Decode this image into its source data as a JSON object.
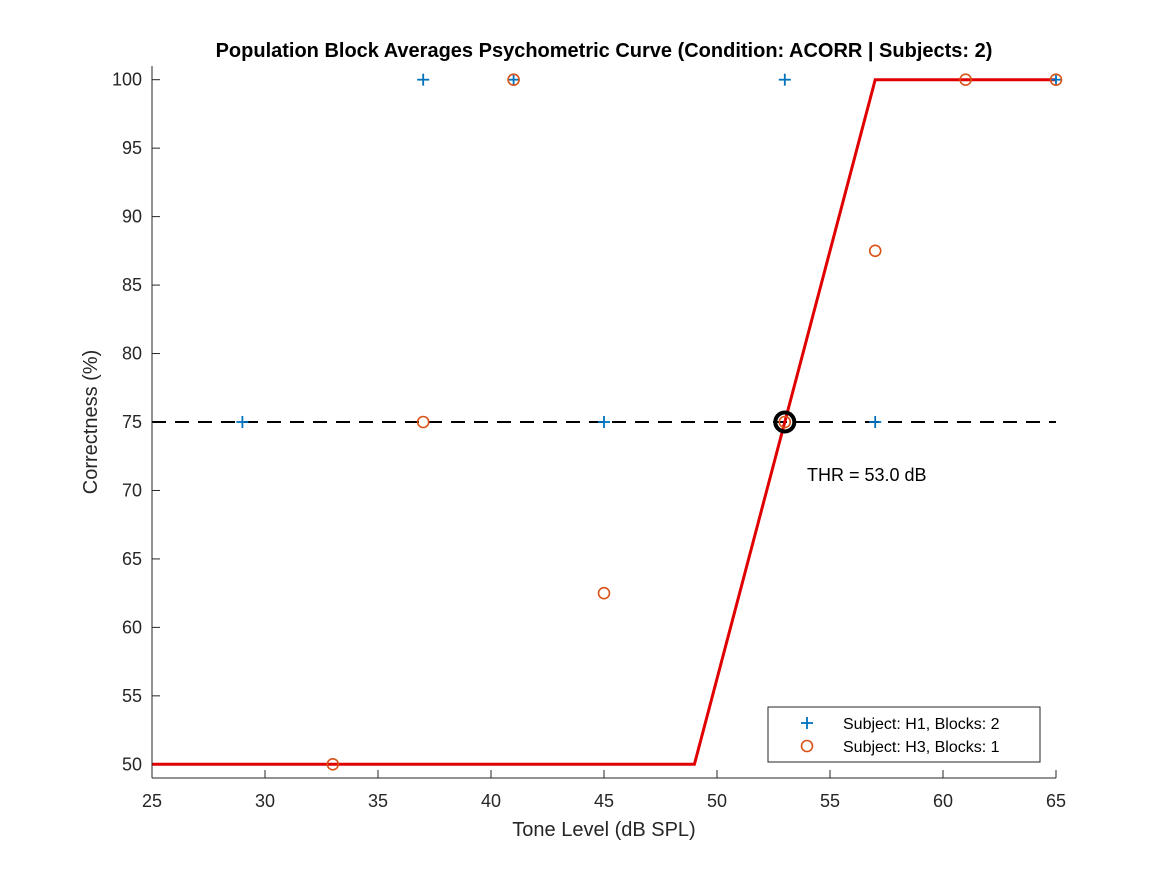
{
  "chart_data": {
    "type": "scatter",
    "title": "Population Block Averages Psychometric Curve (Condition: ACORR | Subjects: 2)",
    "xlabel": "Tone Level (dB SPL)",
    "ylabel": "Correctness (%)",
    "xlim": [
      25,
      65
    ],
    "ylim": [
      49,
      101
    ],
    "xticks": [
      25,
      30,
      35,
      40,
      45,
      50,
      55,
      60,
      65
    ],
    "yticks": [
      50,
      55,
      60,
      65,
      70,
      75,
      80,
      85,
      90,
      95,
      100
    ],
    "grid": false,
    "legend_position": "bottom-right",
    "series": [
      {
        "name": "Subject: H1, Blocks: 2",
        "marker": "plus",
        "color": "#0072BD",
        "points": [
          [
            29,
            75
          ],
          [
            37,
            100
          ],
          [
            41,
            100
          ],
          [
            45,
            75
          ],
          [
            53,
            100
          ],
          [
            57,
            75
          ],
          [
            65,
            100
          ]
        ]
      },
      {
        "name": "Subject: H3, Blocks: 1",
        "marker": "circle",
        "color": "#D95319",
        "points": [
          [
            33,
            50
          ],
          [
            37,
            75
          ],
          [
            41,
            100
          ],
          [
            45,
            62.5
          ],
          [
            53,
            75
          ],
          [
            57,
            87.5
          ],
          [
            61,
            100
          ],
          [
            65,
            100
          ]
        ]
      }
    ],
    "fit_curve": {
      "color": "#E00000",
      "points": [
        [
          25,
          50
        ],
        [
          49,
          50
        ],
        [
          57,
          100
        ],
        [
          65,
          100
        ]
      ]
    },
    "reference_line": {
      "y": 75,
      "style": "dashed",
      "color": "#000000"
    },
    "threshold": {
      "x": 53,
      "y": 75,
      "label": "THR = 53.0 dB"
    }
  }
}
